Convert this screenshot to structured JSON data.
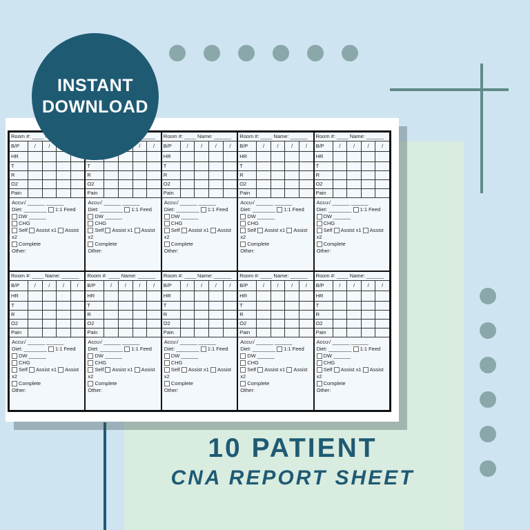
{
  "badge": {
    "line1": "INSTANT",
    "line2": "DOWNLOAD"
  },
  "title": {
    "line1": "10 PATIENT",
    "line2": "CNA REPORT SHEET"
  },
  "card": {
    "room": "Room #: ____",
    "name": "Name: ______",
    "vitals": [
      "B/P",
      "HR",
      "T",
      "R",
      "O2",
      "Pain"
    ],
    "accu": "Accu√ ______ ______",
    "diet": "Diet: ________",
    "feed": "1:1 Feed",
    "dw": "DW ______",
    "chg": "CHG",
    "self": "Self",
    "assist1": "Assist x1",
    "assist2": "Assist x2",
    "complete": "Complete",
    "other": "Other:"
  },
  "colors": {
    "accent": "#1f5a73",
    "background": "#cfe4f1",
    "panel": "#d9ece0"
  }
}
